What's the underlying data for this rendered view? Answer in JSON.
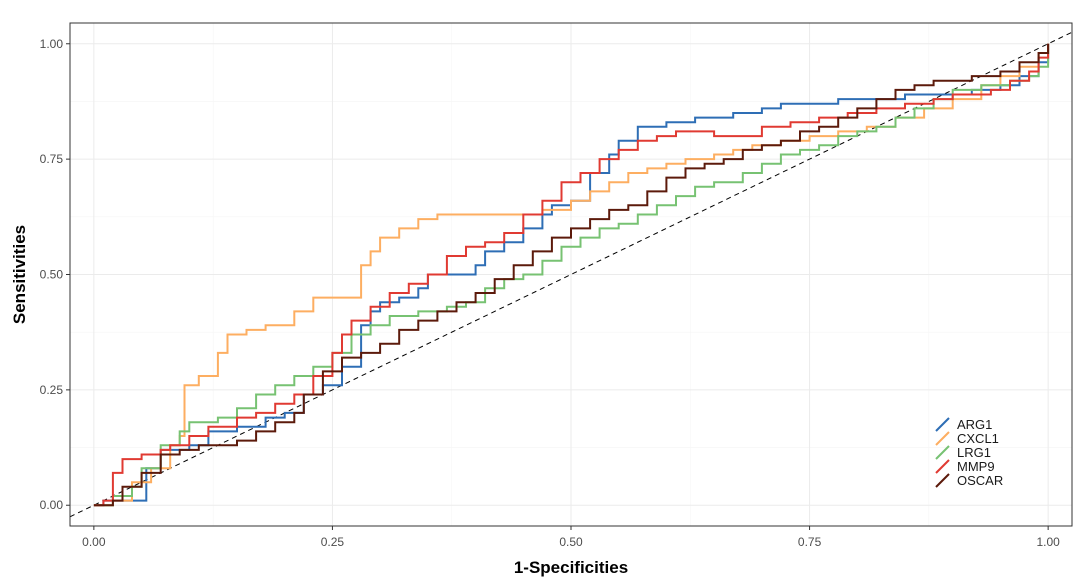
{
  "chart_data": {
    "type": "line",
    "title": "",
    "xlabel": "1-Specificities",
    "ylabel": "Sensitivities",
    "xlim": [
      -0.025,
      1.025
    ],
    "ylim": [
      -0.045,
      1.045
    ],
    "xticks": [
      0,
      0.25,
      0.5,
      0.75,
      1
    ],
    "xtick_labels": [
      "0.00",
      "0.25",
      "0.50",
      "0.75",
      "1.00"
    ],
    "yticks": [
      0,
      0.25,
      0.5,
      0.75,
      1
    ],
    "ytick_labels": [
      "0.00",
      "0.25",
      "0.50",
      "0.75",
      "1.00"
    ],
    "grid": true,
    "legend_position": "bottom-right",
    "reference_line": {
      "style": "dashed",
      "color": "#000000",
      "from": [
        0,
        0
      ],
      "to": [
        1,
        1
      ]
    },
    "series": [
      {
        "name": "ARG1",
        "color": "#2e6eb5",
        "points": [
          [
            0,
            0
          ],
          [
            0.01,
            0.01
          ],
          [
            0.03,
            0.01
          ],
          [
            0.055,
            0.01
          ],
          [
            0.055,
            0.08
          ],
          [
            0.07,
            0.09
          ],
          [
            0.07,
            0.12
          ],
          [
            0.1,
            0.13
          ],
          [
            0.12,
            0.13
          ],
          [
            0.12,
            0.16
          ],
          [
            0.15,
            0.17
          ],
          [
            0.18,
            0.19
          ],
          [
            0.2,
            0.2
          ],
          [
            0.22,
            0.24
          ],
          [
            0.24,
            0.26
          ],
          [
            0.26,
            0.3
          ],
          [
            0.28,
            0.39
          ],
          [
            0.29,
            0.42
          ],
          [
            0.3,
            0.44
          ],
          [
            0.32,
            0.45
          ],
          [
            0.34,
            0.47
          ],
          [
            0.35,
            0.5
          ],
          [
            0.38,
            0.5
          ],
          [
            0.4,
            0.52
          ],
          [
            0.41,
            0.55
          ],
          [
            0.43,
            0.57
          ],
          [
            0.45,
            0.6
          ],
          [
            0.47,
            0.63
          ],
          [
            0.48,
            0.65
          ],
          [
            0.5,
            0.66
          ],
          [
            0.52,
            0.72
          ],
          [
            0.54,
            0.76
          ],
          [
            0.55,
            0.79
          ],
          [
            0.57,
            0.82
          ],
          [
            0.6,
            0.83
          ],
          [
            0.63,
            0.84
          ],
          [
            0.67,
            0.85
          ],
          [
            0.7,
            0.86
          ],
          [
            0.72,
            0.87
          ],
          [
            0.75,
            0.87
          ],
          [
            0.78,
            0.88
          ],
          [
            0.82,
            0.88
          ],
          [
            0.85,
            0.89
          ],
          [
            0.88,
            0.89
          ],
          [
            0.92,
            0.9
          ],
          [
            0.95,
            0.91
          ],
          [
            0.97,
            0.93
          ],
          [
            0.99,
            0.96
          ],
          [
            1,
            1
          ]
        ]
      },
      {
        "name": "CXCL1",
        "color": "#fdae61",
        "points": [
          [
            0,
            0
          ],
          [
            0.02,
            0.01
          ],
          [
            0.04,
            0.05
          ],
          [
            0.06,
            0.08
          ],
          [
            0.08,
            0.13
          ],
          [
            0.09,
            0.15
          ],
          [
            0.095,
            0.26
          ],
          [
            0.11,
            0.28
          ],
          [
            0.13,
            0.3
          ],
          [
            0.13,
            0.33
          ],
          [
            0.14,
            0.37
          ],
          [
            0.16,
            0.38
          ],
          [
            0.18,
            0.39
          ],
          [
            0.2,
            0.39
          ],
          [
            0.21,
            0.42
          ],
          [
            0.23,
            0.45
          ],
          [
            0.26,
            0.45
          ],
          [
            0.28,
            0.47
          ],
          [
            0.28,
            0.52
          ],
          [
            0.29,
            0.55
          ],
          [
            0.3,
            0.58
          ],
          [
            0.32,
            0.6
          ],
          [
            0.34,
            0.62
          ],
          [
            0.36,
            0.63
          ],
          [
            0.39,
            0.63
          ],
          [
            0.42,
            0.63
          ],
          [
            0.45,
            0.63
          ],
          [
            0.47,
            0.64
          ],
          [
            0.5,
            0.66
          ],
          [
            0.52,
            0.68
          ],
          [
            0.54,
            0.7
          ],
          [
            0.56,
            0.72
          ],
          [
            0.58,
            0.73
          ],
          [
            0.6,
            0.74
          ],
          [
            0.62,
            0.75
          ],
          [
            0.65,
            0.76
          ],
          [
            0.67,
            0.77
          ],
          [
            0.69,
            0.78
          ],
          [
            0.72,
            0.79
          ],
          [
            0.75,
            0.8
          ],
          [
            0.78,
            0.81
          ],
          [
            0.81,
            0.82
          ],
          [
            0.84,
            0.84
          ],
          [
            0.87,
            0.86
          ],
          [
            0.9,
            0.88
          ],
          [
            0.93,
            0.91
          ],
          [
            0.95,
            0.93
          ],
          [
            0.97,
            0.95
          ],
          [
            0.99,
            0.98
          ],
          [
            1,
            1
          ]
        ]
      },
      {
        "name": "LRG1",
        "color": "#77c272",
        "points": [
          [
            0,
            0
          ],
          [
            0.02,
            0.02
          ],
          [
            0.04,
            0.04
          ],
          [
            0.05,
            0.08
          ],
          [
            0.07,
            0.13
          ],
          [
            0.09,
            0.16
          ],
          [
            0.1,
            0.18
          ],
          [
            0.13,
            0.19
          ],
          [
            0.15,
            0.21
          ],
          [
            0.17,
            0.24
          ],
          [
            0.19,
            0.26
          ],
          [
            0.21,
            0.28
          ],
          [
            0.23,
            0.3
          ],
          [
            0.25,
            0.33
          ],
          [
            0.27,
            0.37
          ],
          [
            0.29,
            0.39
          ],
          [
            0.31,
            0.41
          ],
          [
            0.34,
            0.42
          ],
          [
            0.37,
            0.43
          ],
          [
            0.39,
            0.44
          ],
          [
            0.41,
            0.47
          ],
          [
            0.43,
            0.49
          ],
          [
            0.45,
            0.5
          ],
          [
            0.47,
            0.53
          ],
          [
            0.49,
            0.56
          ],
          [
            0.51,
            0.58
          ],
          [
            0.53,
            0.6
          ],
          [
            0.55,
            0.61
          ],
          [
            0.57,
            0.63
          ],
          [
            0.59,
            0.65
          ],
          [
            0.61,
            0.67
          ],
          [
            0.63,
            0.69
          ],
          [
            0.65,
            0.7
          ],
          [
            0.68,
            0.72
          ],
          [
            0.7,
            0.74
          ],
          [
            0.72,
            0.76
          ],
          [
            0.74,
            0.77
          ],
          [
            0.76,
            0.78
          ],
          [
            0.78,
            0.8
          ],
          [
            0.8,
            0.81
          ],
          [
            0.82,
            0.82
          ],
          [
            0.84,
            0.84
          ],
          [
            0.86,
            0.86
          ],
          [
            0.88,
            0.88
          ],
          [
            0.9,
            0.9
          ],
          [
            0.93,
            0.91
          ],
          [
            0.96,
            0.92
          ],
          [
            0.98,
            0.93
          ],
          [
            0.99,
            0.95
          ],
          [
            1,
            1
          ]
        ]
      },
      {
        "name": "MMP9",
        "color": "#e03a32",
        "points": [
          [
            0,
            0
          ],
          [
            0.01,
            0.01
          ],
          [
            0.02,
            0.07
          ],
          [
            0.03,
            0.1
          ],
          [
            0.05,
            0.11
          ],
          [
            0.07,
            0.12
          ],
          [
            0.08,
            0.13
          ],
          [
            0.1,
            0.15
          ],
          [
            0.12,
            0.17
          ],
          [
            0.15,
            0.19
          ],
          [
            0.17,
            0.2
          ],
          [
            0.19,
            0.22
          ],
          [
            0.21,
            0.24
          ],
          [
            0.23,
            0.28
          ],
          [
            0.25,
            0.33
          ],
          [
            0.26,
            0.37
          ],
          [
            0.27,
            0.4
          ],
          [
            0.29,
            0.43
          ],
          [
            0.31,
            0.46
          ],
          [
            0.33,
            0.48
          ],
          [
            0.35,
            0.5
          ],
          [
            0.37,
            0.54
          ],
          [
            0.39,
            0.56
          ],
          [
            0.41,
            0.57
          ],
          [
            0.43,
            0.59
          ],
          [
            0.45,
            0.63
          ],
          [
            0.47,
            0.66
          ],
          [
            0.49,
            0.7
          ],
          [
            0.51,
            0.72
          ],
          [
            0.53,
            0.75
          ],
          [
            0.55,
            0.77
          ],
          [
            0.57,
            0.79
          ],
          [
            0.59,
            0.8
          ],
          [
            0.61,
            0.81
          ],
          [
            0.63,
            0.81
          ],
          [
            0.65,
            0.8
          ],
          [
            0.67,
            0.8
          ],
          [
            0.7,
            0.82
          ],
          [
            0.73,
            0.83
          ],
          [
            0.76,
            0.84
          ],
          [
            0.79,
            0.85
          ],
          [
            0.82,
            0.86
          ],
          [
            0.85,
            0.87
          ],
          [
            0.88,
            0.88
          ],
          [
            0.9,
            0.89
          ],
          [
            0.92,
            0.89
          ],
          [
            0.94,
            0.9
          ],
          [
            0.96,
            0.92
          ],
          [
            0.98,
            0.94
          ],
          [
            0.99,
            0.97
          ],
          [
            1,
            1
          ]
        ]
      },
      {
        "name": "OSCAR",
        "color": "#5c1a0b",
        "points": [
          [
            0,
            0
          ],
          [
            0.02,
            0.01
          ],
          [
            0.03,
            0.04
          ],
          [
            0.05,
            0.07
          ],
          [
            0.07,
            0.11
          ],
          [
            0.09,
            0.12
          ],
          [
            0.11,
            0.13
          ],
          [
            0.13,
            0.13
          ],
          [
            0.15,
            0.14
          ],
          [
            0.17,
            0.16
          ],
          [
            0.19,
            0.18
          ],
          [
            0.21,
            0.2
          ],
          [
            0.22,
            0.24
          ],
          [
            0.24,
            0.29
          ],
          [
            0.26,
            0.32
          ],
          [
            0.28,
            0.33
          ],
          [
            0.3,
            0.35
          ],
          [
            0.32,
            0.38
          ],
          [
            0.34,
            0.4
          ],
          [
            0.36,
            0.42
          ],
          [
            0.38,
            0.44
          ],
          [
            0.4,
            0.46
          ],
          [
            0.42,
            0.49
          ],
          [
            0.44,
            0.52
          ],
          [
            0.46,
            0.55
          ],
          [
            0.48,
            0.58
          ],
          [
            0.5,
            0.6
          ],
          [
            0.52,
            0.62
          ],
          [
            0.54,
            0.64
          ],
          [
            0.56,
            0.65
          ],
          [
            0.58,
            0.68
          ],
          [
            0.6,
            0.71
          ],
          [
            0.62,
            0.73
          ],
          [
            0.64,
            0.74
          ],
          [
            0.66,
            0.75
          ],
          [
            0.68,
            0.77
          ],
          [
            0.7,
            0.78
          ],
          [
            0.72,
            0.79
          ],
          [
            0.74,
            0.81
          ],
          [
            0.76,
            0.82
          ],
          [
            0.78,
            0.84
          ],
          [
            0.8,
            0.86
          ],
          [
            0.82,
            0.88
          ],
          [
            0.84,
            0.9
          ],
          [
            0.86,
            0.91
          ],
          [
            0.88,
            0.92
          ],
          [
            0.9,
            0.92
          ],
          [
            0.92,
            0.93
          ],
          [
            0.95,
            0.94
          ],
          [
            0.97,
            0.96
          ],
          [
            0.99,
            0.98
          ],
          [
            1,
            1
          ]
        ]
      }
    ]
  }
}
